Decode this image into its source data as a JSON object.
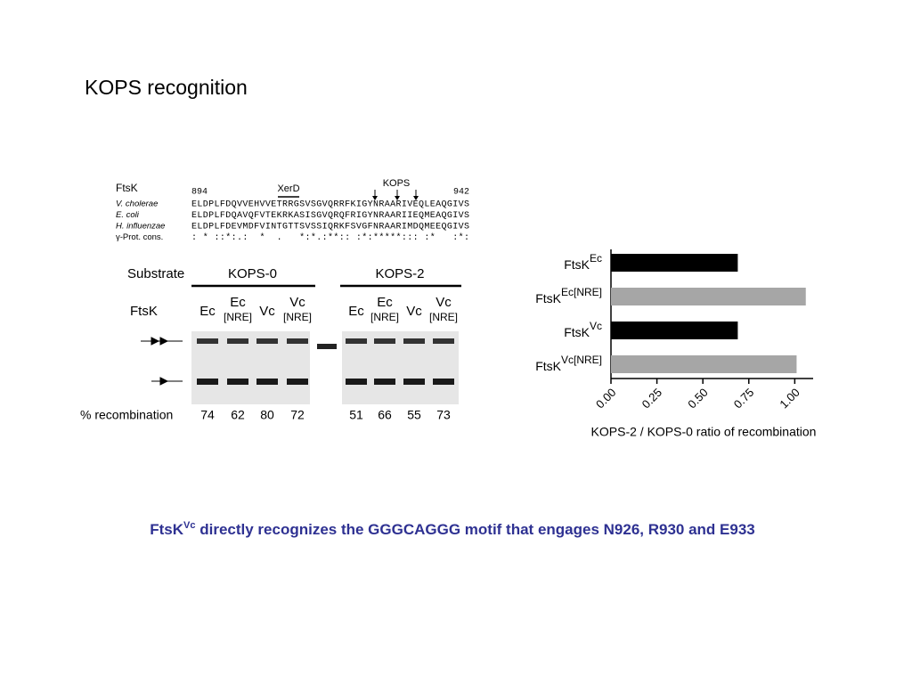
{
  "header": {
    "title": "KOPS recognition"
  },
  "alignment": {
    "protein": "FtsK",
    "start": "894",
    "end": "942",
    "xerd": "XerD",
    "kops": "KOPS",
    "rows": [
      {
        "species": "V. cholerae",
        "sequence": "ELDPLFDQVVEHVVETRRGSVSGVQRRFKIGYNRAARIVEQLEAQGIVS"
      },
      {
        "species": "E. coli",
        "sequence": "ELDPLFDQAVQFVTEKRKASISGVQRQFRIGYNRAARIIEQMEAQGIVS"
      },
      {
        "species": "H. influenzae",
        "sequence": "ELDPLFDEVMDFVINTGTTSVSSIQRKFSVGFNRAARIMDQMEEQGIVS"
      },
      {
        "species": "γ-Prot. cons.",
        "sequence": ": * ::*:.:  *  .   *:*.:**:: :*:*****::: :*   :*:"
      }
    ]
  },
  "gel": {
    "substrate_label": "Substrate",
    "ftsk_label": "FtsK",
    "recombination_label": "% recombination",
    "groups": [
      {
        "name": "KOPS-0",
        "lanes": [
          {
            "label": "Ec",
            "sub": ""
          },
          {
            "label": "Ec",
            "sub": "[NRE]"
          },
          {
            "label": "Vc",
            "sub": ""
          },
          {
            "label": "Vc",
            "sub": "[NRE]"
          }
        ],
        "percent": [
          74,
          62,
          80,
          72
        ]
      },
      {
        "name": "KOPS-2",
        "lanes": [
          {
            "label": "Ec",
            "sub": ""
          },
          {
            "label": "Ec",
            "sub": "[NRE]"
          },
          {
            "label": "Vc",
            "sub": ""
          },
          {
            "label": "Vc",
            "sub": "[NRE]"
          }
        ],
        "percent": [
          51,
          66,
          55,
          73
        ]
      }
    ]
  },
  "chart_data": {
    "type": "hbar",
    "x_label": "KOPS-2 / KOPS-0 ratio of recombination",
    "categories": [
      {
        "name": "FtsK",
        "sup": "Ec"
      },
      {
        "name": "FtsK",
        "sup": "Ec[NRE]"
      },
      {
        "name": "FtsK",
        "sup": "Vc"
      },
      {
        "name": "FtsK",
        "sup": "Vc[NRE]"
      }
    ],
    "values": [
      0.69,
      1.06,
      0.69,
      1.01
    ],
    "colors": [
      "#000000",
      "#a6a6a6",
      "#000000",
      "#a6a6a6"
    ],
    "xlim": [
      0,
      1.1
    ],
    "xticks": [
      {
        "value": 0,
        "label": "0.00"
      },
      {
        "value": 0.25,
        "label": "0.25"
      },
      {
        "value": 0.5,
        "label": "0.50"
      },
      {
        "value": 0.75,
        "label": "0.75"
      },
      {
        "value": 1,
        "label": "1.00"
      }
    ]
  },
  "caption": {
    "prefix": "FtsK",
    "sup": "Vc",
    "text": " directly recognizes the GGGCAGGG motif that engages N926, R930 and E933"
  }
}
